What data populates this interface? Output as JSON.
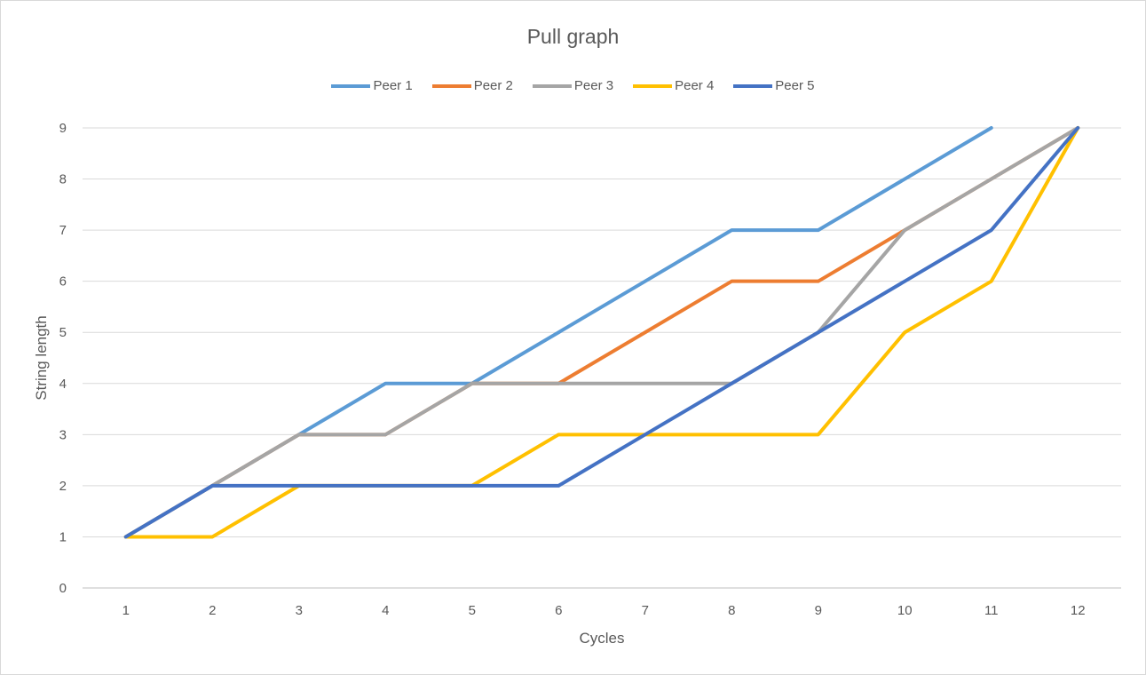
{
  "chart_data": {
    "type": "line",
    "title": "Pull graph",
    "xlabel": "Cycles",
    "ylabel": "String length",
    "categories": [
      "1",
      "2",
      "3",
      "4",
      "5",
      "6",
      "7",
      "8",
      "9",
      "10",
      "11",
      "12"
    ],
    "y_ticks": [
      "0",
      "1",
      "2",
      "3",
      "4",
      "5",
      "6",
      "7",
      "8",
      "9"
    ],
    "ylim": [
      0,
      9
    ],
    "grid": true,
    "legend_position": "top",
    "series": [
      {
        "name": "Peer 1",
        "color": "#5b9bd5",
        "values": [
          1,
          2,
          3,
          4,
          4,
          5,
          6,
          7,
          7,
          8,
          9,
          null
        ]
      },
      {
        "name": "Peer 2",
        "color": "#ed7d31",
        "values": [
          1,
          2,
          3,
          3,
          4,
          4,
          5,
          6,
          6,
          7,
          8,
          9
        ]
      },
      {
        "name": "Peer 3",
        "color": "#a5a5a5",
        "values": [
          1,
          2,
          3,
          3,
          4,
          4,
          4,
          4,
          5,
          7,
          8,
          9
        ]
      },
      {
        "name": "Peer 4",
        "color": "#ffc000",
        "values": [
          1,
          1,
          2,
          2,
          2,
          3,
          3,
          3,
          3,
          5,
          6,
          9
        ]
      },
      {
        "name": "Peer 5",
        "color": "#4472c4",
        "values": [
          1,
          2,
          2,
          2,
          2,
          2,
          3,
          4,
          5,
          6,
          7,
          9
        ]
      }
    ]
  }
}
